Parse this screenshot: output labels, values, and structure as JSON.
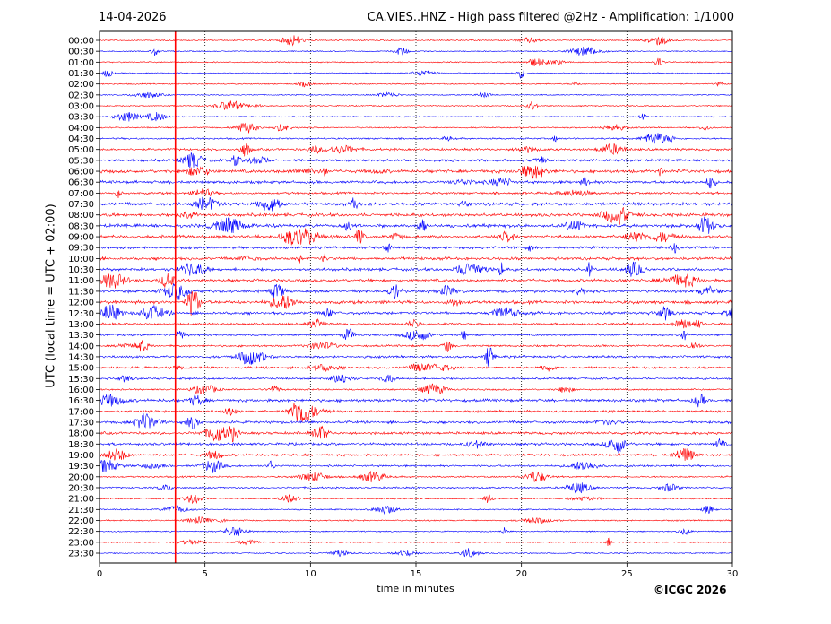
{
  "header": {
    "date": "14-04-2026",
    "title": "CA.VIES..HNZ - High pass filtered @2Hz - Amplification: 1/1000"
  },
  "footer": {
    "copyright": "©ICGC 2026"
  },
  "chart_data": {
    "type": "line",
    "title": "CA.VIES..HNZ - High pass filtered @2Hz - Amplification: 1/1000",
    "xlabel": "time in minutes",
    "ylabel": "UTC (local time = UTC + 02:00)",
    "xlim": [
      0,
      30
    ],
    "xticks": [
      0,
      5,
      10,
      15,
      20,
      25,
      30
    ],
    "grid_x": true,
    "ytick_labels": [
      "00:00",
      "00:30",
      "01:00",
      "01:30",
      "02:00",
      "02:30",
      "03:00",
      "03:30",
      "04:00",
      "04:30",
      "05:00",
      "05:30",
      "06:00",
      "06:30",
      "07:00",
      "07:30",
      "08:00",
      "08:30",
      "09:00",
      "09:30",
      "10:00",
      "10:30",
      "11:00",
      "11:30",
      "12:00",
      "12:30",
      "13:00",
      "13:30",
      "14:00",
      "14:30",
      "15:00",
      "15:30",
      "16:00",
      "16:30",
      "17:00",
      "17:30",
      "18:00",
      "18:30",
      "19:00",
      "19:30",
      "20:00",
      "20:30",
      "21:00",
      "21:30",
      "22:00",
      "22:30",
      "23:00",
      "23:30"
    ],
    "trace_colors": [
      "#ff0000",
      "#0000ff"
    ],
    "relative_noise_levels": [
      0.15,
      0.1,
      0.15,
      0.12,
      0.15,
      0.1,
      0.15,
      0.12,
      0.2,
      0.3,
      0.5,
      0.6,
      0.8,
      0.7,
      0.5,
      0.8,
      0.8,
      0.9,
      0.8,
      0.6,
      0.7,
      0.7,
      0.7,
      0.7,
      0.8,
      0.7,
      0.5,
      0.4,
      0.4,
      0.5,
      0.5,
      0.4,
      0.3,
      0.7,
      0.5,
      0.6,
      0.6,
      0.6,
      0.5,
      0.4,
      0.3,
      0.3,
      0.2,
      0.2,
      0.2,
      0.15,
      0.15,
      0.15
    ]
  }
}
